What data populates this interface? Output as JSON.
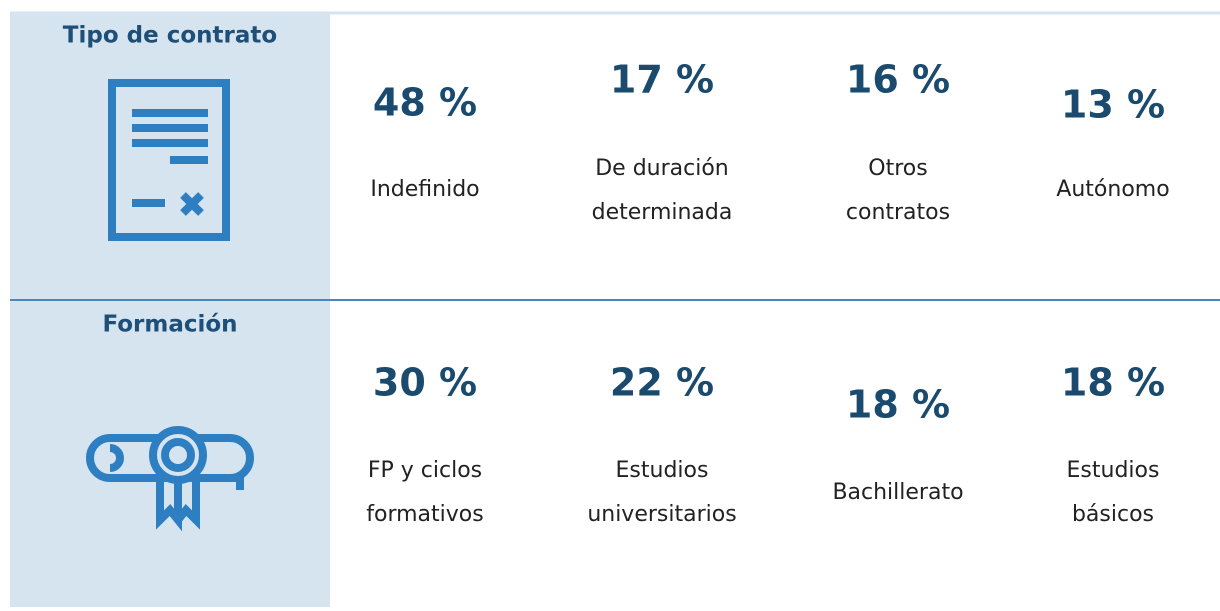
{
  "sections": [
    {
      "title": "Tipo de contrato",
      "items": [
        {
          "value": "48 %",
          "label": [
            "Indefinido"
          ]
        },
        {
          "value": "17 %",
          "label": [
            "De duración",
            "determinada"
          ]
        },
        {
          "value": "16 %",
          "label": [
            "Otros",
            "contratos"
          ]
        },
        {
          "value": "13 %",
          "label": [
            "Autónomo"
          ]
        }
      ]
    },
    {
      "title": "Formación",
      "items": [
        {
          "value": "30 %",
          "label": [
            "FP y ciclos",
            "formativos"
          ]
        },
        {
          "value": "22 %",
          "label": [
            "Estudios",
            "universitarios"
          ]
        },
        {
          "value": "18 %",
          "label": [
            "Bachillerato"
          ]
        },
        {
          "value": "18 %",
          "label": [
            "Estudios",
            "básicos"
          ]
        }
      ]
    }
  ]
}
